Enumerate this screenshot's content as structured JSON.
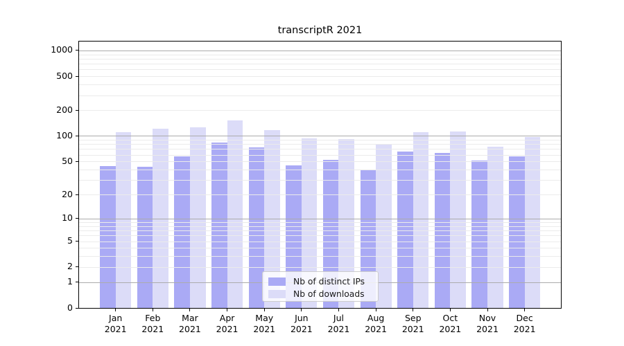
{
  "chart_data": {
    "type": "bar",
    "title": "transcriptR 2021",
    "categories": [
      "Jan",
      "Feb",
      "Mar",
      "Apr",
      "May",
      "Jun",
      "Jul",
      "Aug",
      "Sep",
      "Oct",
      "Nov",
      "Dec"
    ],
    "category_sublabel": "2021",
    "series": [
      {
        "name": "Nb of distinct IPs",
        "color": "#aaaaf5",
        "values": [
          44,
          43,
          57,
          84,
          73,
          45,
          52,
          40,
          65,
          63,
          51,
          57
        ]
      },
      {
        "name": "Nb of downloads",
        "color": "#dcdcf8",
        "values": [
          111,
          121,
          126,
          151,
          118,
          94,
          91,
          79,
          111,
          113,
          75,
          98
        ]
      }
    ],
    "y_axis": {
      "scale": "log1p",
      "ticks": [
        0,
        1,
        2,
        5,
        10,
        20,
        50,
        100,
        200,
        500,
        1000
      ],
      "range": [
        0,
        1290
      ],
      "grid": "both",
      "grid_major_values": [
        1,
        10,
        100,
        1000
      ],
      "grid_minor_multiples": [
        2,
        3,
        4,
        5,
        6,
        7,
        8,
        9
      ],
      "grid_minor_decades": [
        1,
        10,
        100
      ]
    },
    "x_axis": {
      "label_lines": 2
    },
    "legend": {
      "position": "lower center",
      "entries": [
        "Nb of distinct IPs",
        "Nb of downloads"
      ]
    },
    "colors": {
      "background": "#ffffff",
      "axis": "#000000",
      "grid_major": "#ababab",
      "grid_minor": "#ebebeb",
      "bar_ips": "#aaaaf5",
      "bar_downloads": "#dcdcf8"
    }
  }
}
